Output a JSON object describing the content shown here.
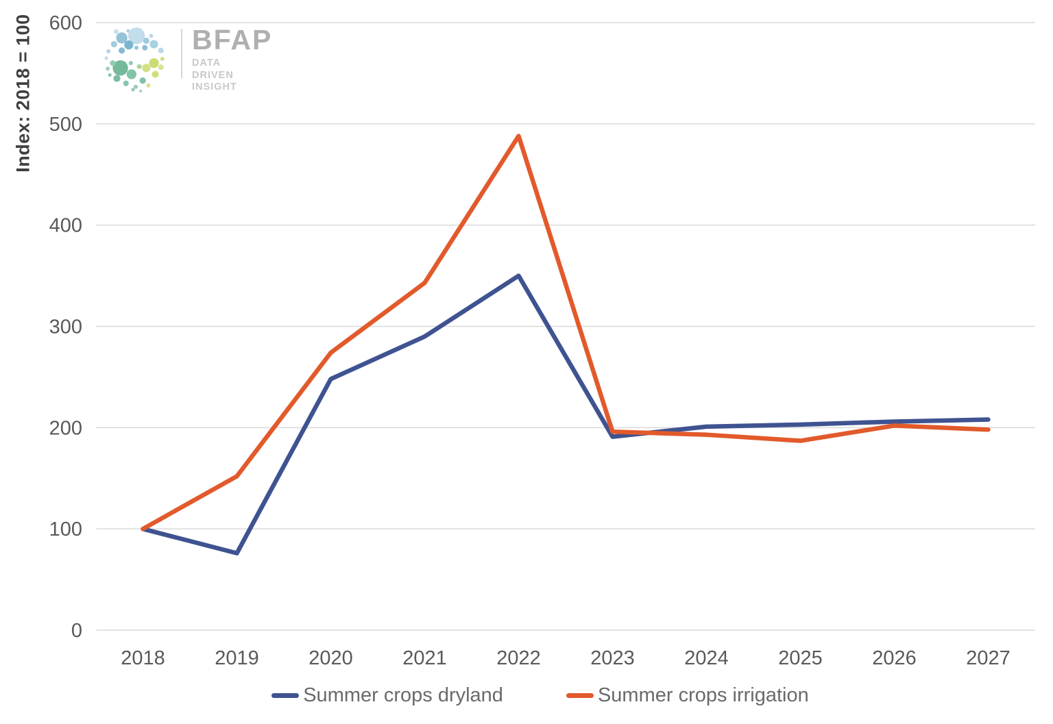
{
  "branding": {
    "name": "BFAP",
    "tagline_lines": [
      "DATA",
      "DRIVEN",
      "INSIGHT"
    ]
  },
  "chart_data": {
    "type": "line",
    "title": "",
    "ylabel": "Index: 2018 = 100",
    "xlabel": "",
    "categories": [
      "2018",
      "2019",
      "2020",
      "2021",
      "2022",
      "2023",
      "2024",
      "2025",
      "2026",
      "2027"
    ],
    "ylim": [
      0,
      600
    ],
    "yticks": [
      0,
      100,
      200,
      300,
      400,
      500,
      600
    ],
    "grid": true,
    "legend_position": "bottom",
    "series": [
      {
        "name": "Summer crops dryland",
        "color": "#3F5391",
        "values": [
          100,
          76,
          248,
          290,
          350,
          191,
          201,
          203,
          206,
          208
        ]
      },
      {
        "name": "Summer crops irrigation",
        "color": "#E25A2B",
        "values": [
          100,
          152,
          274,
          343,
          488,
          196,
          193,
          187,
          202,
          198
        ]
      }
    ],
    "styles": {
      "gridline_color": "#D9D9D9",
      "tick_label_color": "#595959",
      "axis_title_color": "#3F3F3F",
      "legend_text_color": "#6A6A6A",
      "line_width": 6.5
    }
  }
}
